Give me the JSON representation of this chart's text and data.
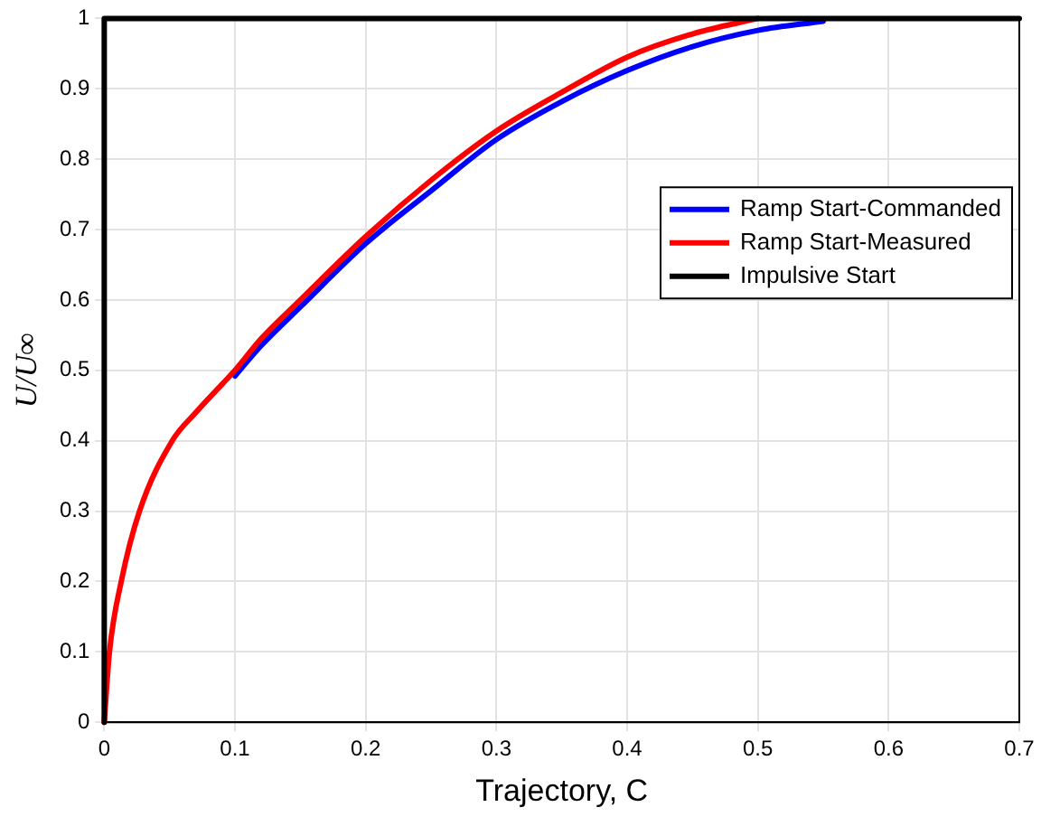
{
  "chart_data": {
    "type": "line",
    "xlabel": "Trajectory, C",
    "ylabel": "U/U∞",
    "xlim": [
      0,
      0.7
    ],
    "ylim": [
      0,
      1
    ],
    "xticks": [
      0,
      0.1,
      0.2,
      0.3,
      0.4,
      0.5,
      0.6,
      0.7
    ],
    "yticks": [
      0,
      0.1,
      0.2,
      0.3,
      0.4,
      0.5,
      0.6,
      0.7,
      0.8,
      0.9,
      1
    ],
    "grid": true,
    "legend": "right",
    "line_style": "solid",
    "marker": "none",
    "series": [
      {
        "name": "Ramp Start-Commanded",
        "color": "#0000ff",
        "x": [
          0.1,
          0.12,
          0.15,
          0.2,
          0.25,
          0.3,
          0.35,
          0.4,
          0.45,
          0.5,
          0.55
        ],
        "values": [
          0.492,
          0.535,
          0.59,
          0.68,
          0.755,
          0.828,
          0.882,
          0.926,
          0.96,
          0.983,
          0.996
        ]
      },
      {
        "name": "Ramp Start-Measured",
        "color": "#ff0000",
        "x": [
          0,
          0.004,
          0.013,
          0.027,
          0.052,
          0.07,
          0.09,
          0.1,
          0.12,
          0.15,
          0.2,
          0.25,
          0.3,
          0.35,
          0.4,
          0.45,
          0.5
        ],
        "values": [
          0,
          0.1,
          0.2,
          0.3,
          0.4,
          0.44,
          0.48,
          0.5,
          0.545,
          0.6,
          0.69,
          0.77,
          0.84,
          0.895,
          0.945,
          0.978,
          1
        ]
      },
      {
        "name": "Impulsive Start",
        "color": "#000000",
        "x": [
          0,
          0,
          0.7
        ],
        "values": [
          0,
          1,
          1
        ]
      }
    ]
  }
}
